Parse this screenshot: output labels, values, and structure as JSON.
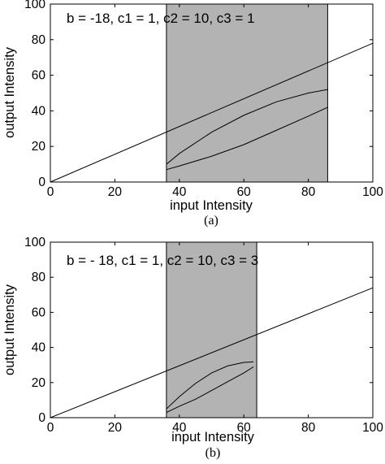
{
  "chart_data": [
    {
      "type": "line",
      "annotation": "b = -18, c1 = 1, c2 = 10, c3 = 1",
      "xlabel": "input Intensity",
      "ylabel": "output Intensity",
      "caption": "(a)",
      "xlim": [
        0,
        100
      ],
      "ylim": [
        0,
        100
      ],
      "xticks": [
        "0",
        "20",
        "40",
        "60",
        "80",
        "100"
      ],
      "yticks": [
        "0",
        "20",
        "40",
        "60",
        "80",
        "100"
      ],
      "shaded_region": {
        "x": [
          36,
          86
        ],
        "color": "#b3b3b3"
      },
      "series": [
        {
          "x": [
            0,
            100
          ],
          "y": [
            0,
            78
          ]
        },
        {
          "x": [
            36,
            40,
            50,
            60,
            70,
            80,
            86
          ],
          "y": [
            7,
            9,
            14.5,
            21,
            29,
            37,
            42
          ]
        },
        {
          "x": [
            36,
            40,
            50,
            60,
            70,
            80,
            86
          ],
          "y": [
            10,
            16,
            28,
            37.5,
            45,
            50,
            52
          ]
        }
      ]
    },
    {
      "type": "line",
      "annotation": "b = - 18, c1 = 1, c2 = 10, c3 = 3",
      "xlabel": "input Intensity",
      "ylabel": "output Intensity",
      "caption": "(b)",
      "xlim": [
        0,
        100
      ],
      "ylim": [
        0,
        100
      ],
      "xticks": [
        "0",
        "20",
        "40",
        "60",
        "80",
        "100"
      ],
      "yticks": [
        "0",
        "20",
        "40",
        "60",
        "80",
        "100"
      ],
      "shaded_region": {
        "x": [
          36,
          64
        ],
        "color": "#b3b3b3"
      },
      "series": [
        {
          "x": [
            0,
            100
          ],
          "y": [
            0,
            74
          ]
        },
        {
          "x": [
            36,
            40,
            45,
            50,
            55,
            60,
            63
          ],
          "y": [
            3,
            6.5,
            10.5,
            15.5,
            20.5,
            25.5,
            29
          ]
        },
        {
          "x": [
            36,
            40,
            45,
            50,
            55,
            60,
            63
          ],
          "y": [
            5,
            12,
            19.5,
            25.5,
            29.5,
            31.5,
            31.8
          ]
        }
      ]
    }
  ]
}
